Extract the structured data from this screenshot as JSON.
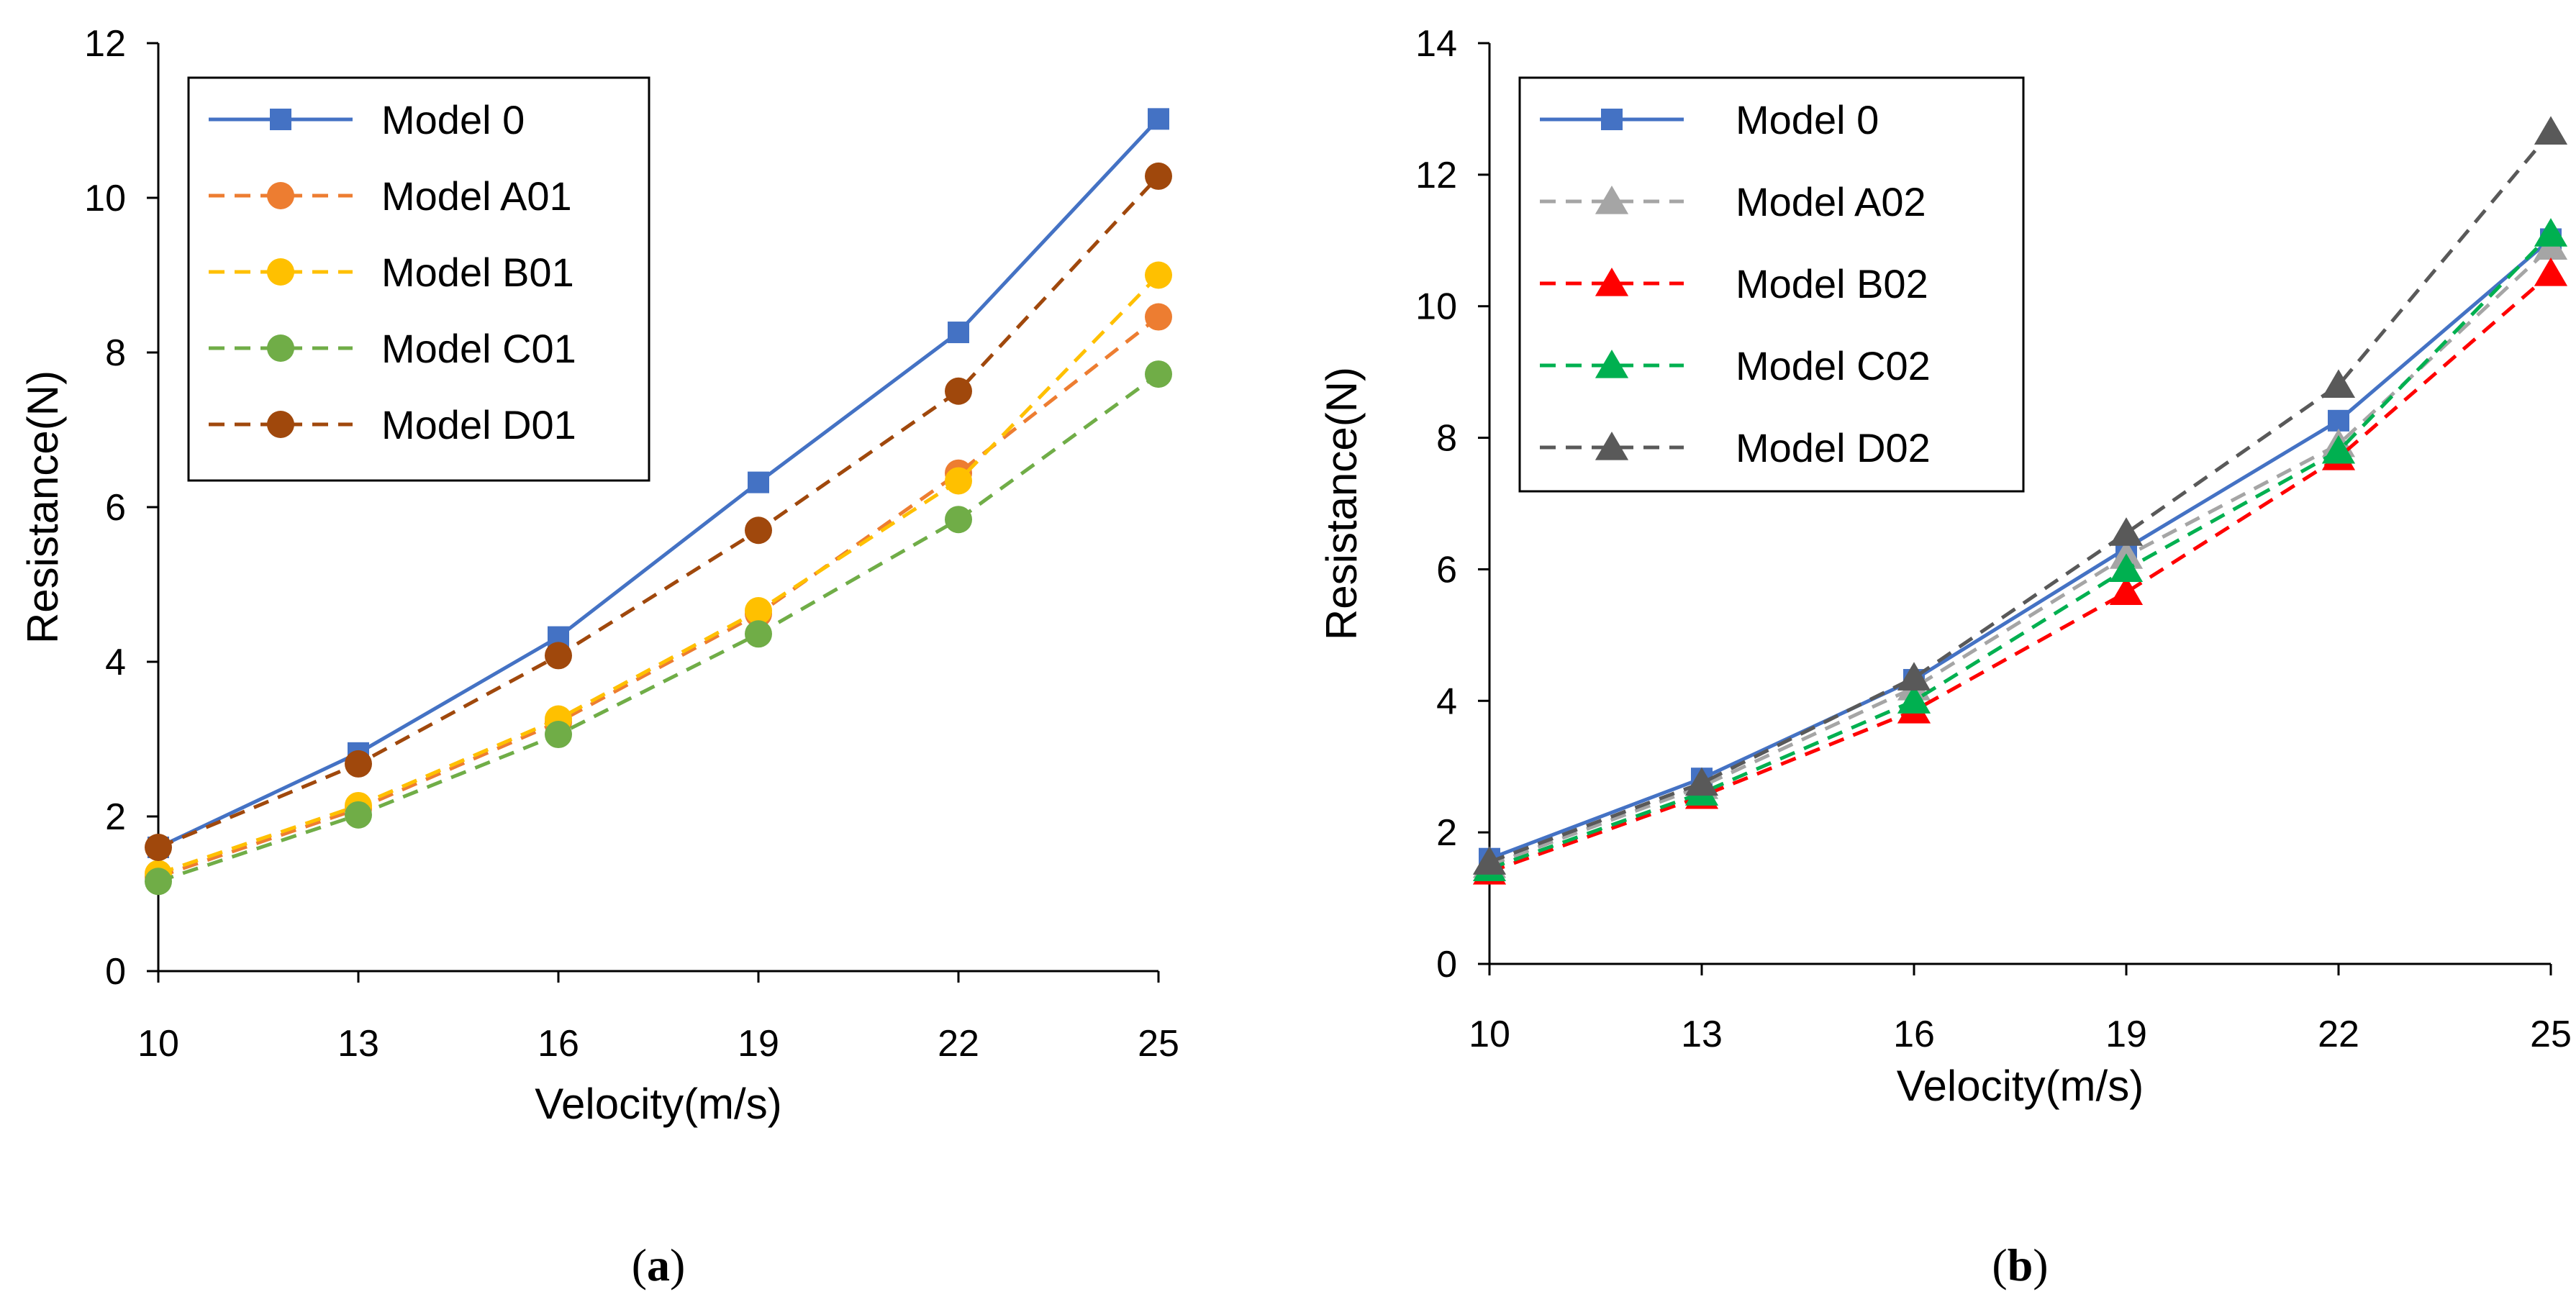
{
  "chart_data": [
    {
      "type": "line",
      "panel": "a",
      "caption": {
        "open": "(",
        "letter": "a",
        "close": ")"
      },
      "xlabel": "Velocity(m/s)",
      "ylabel": "Resistance(N)",
      "x": [
        10,
        13,
        16,
        19,
        22,
        25
      ],
      "xlim": [
        10,
        25
      ],
      "ylim": [
        0,
        12
      ],
      "yticks": [
        0,
        2,
        4,
        6,
        8,
        10,
        12
      ],
      "legend_position": "top-left",
      "series": [
        {
          "name": "Model 0",
          "values": [
            1.6,
            2.82,
            4.32,
            6.32,
            8.26,
            11.02
          ],
          "color": "#4472C4",
          "marker": "square",
          "dash": "solid"
        },
        {
          "name": "Model A01",
          "values": [
            1.22,
            2.1,
            3.22,
            4.62,
            6.44,
            8.46
          ],
          "color": "#ED7D31",
          "marker": "circle",
          "dash": "dashed"
        },
        {
          "name": "Model B01",
          "values": [
            1.26,
            2.14,
            3.26,
            4.66,
            6.34,
            9.0
          ],
          "color": "#FFC000",
          "marker": "circle",
          "dash": "dashed"
        },
        {
          "name": "Model C01",
          "values": [
            1.16,
            2.02,
            3.06,
            4.36,
            5.84,
            7.72
          ],
          "color": "#70AD47",
          "marker": "circle",
          "dash": "dashed"
        },
        {
          "name": "Model D01",
          "values": [
            1.6,
            2.68,
            4.08,
            5.7,
            7.5,
            10.28
          ],
          "color": "#A0480C",
          "marker": "circle",
          "dash": "dashed"
        }
      ]
    },
    {
      "type": "line",
      "panel": "b",
      "caption": {
        "open": "(",
        "letter": "b",
        "close": ")"
      },
      "xlabel": "Velocity(m/s)",
      "ylabel": "Resistance(N)",
      "x": [
        10,
        13,
        16,
        19,
        22,
        25
      ],
      "xlim": [
        10,
        25
      ],
      "ylim": [
        0,
        14
      ],
      "yticks": [
        0,
        2,
        4,
        6,
        8,
        10,
        12,
        14
      ],
      "legend_position": "top-left",
      "series": [
        {
          "name": "Model 0",
          "values": [
            1.6,
            2.82,
            4.32,
            6.32,
            8.26,
            11.02
          ],
          "color": "#4472C4",
          "marker": "square",
          "dash": "solid"
        },
        {
          "name": "Model A02",
          "values": [
            1.5,
            2.7,
            4.2,
            6.2,
            7.9,
            10.9
          ],
          "color": "#A5A5A5",
          "marker": "triangle",
          "dash": "dashed"
        },
        {
          "name": "Model B02",
          "values": [
            1.4,
            2.55,
            3.85,
            5.65,
            7.7,
            10.5
          ],
          "color": "#FF0000",
          "marker": "triangle",
          "dash": "dashed"
        },
        {
          "name": "Model C02",
          "values": [
            1.45,
            2.6,
            4.0,
            6.0,
            7.8,
            11.1
          ],
          "color": "#00B050",
          "marker": "triangle",
          "dash": "dashed"
        },
        {
          "name": "Model D02",
          "values": [
            1.55,
            2.75,
            4.35,
            6.55,
            8.8,
            12.65
          ],
          "color": "#595959",
          "marker": "triangle",
          "dash": "dashed"
        }
      ]
    }
  ]
}
